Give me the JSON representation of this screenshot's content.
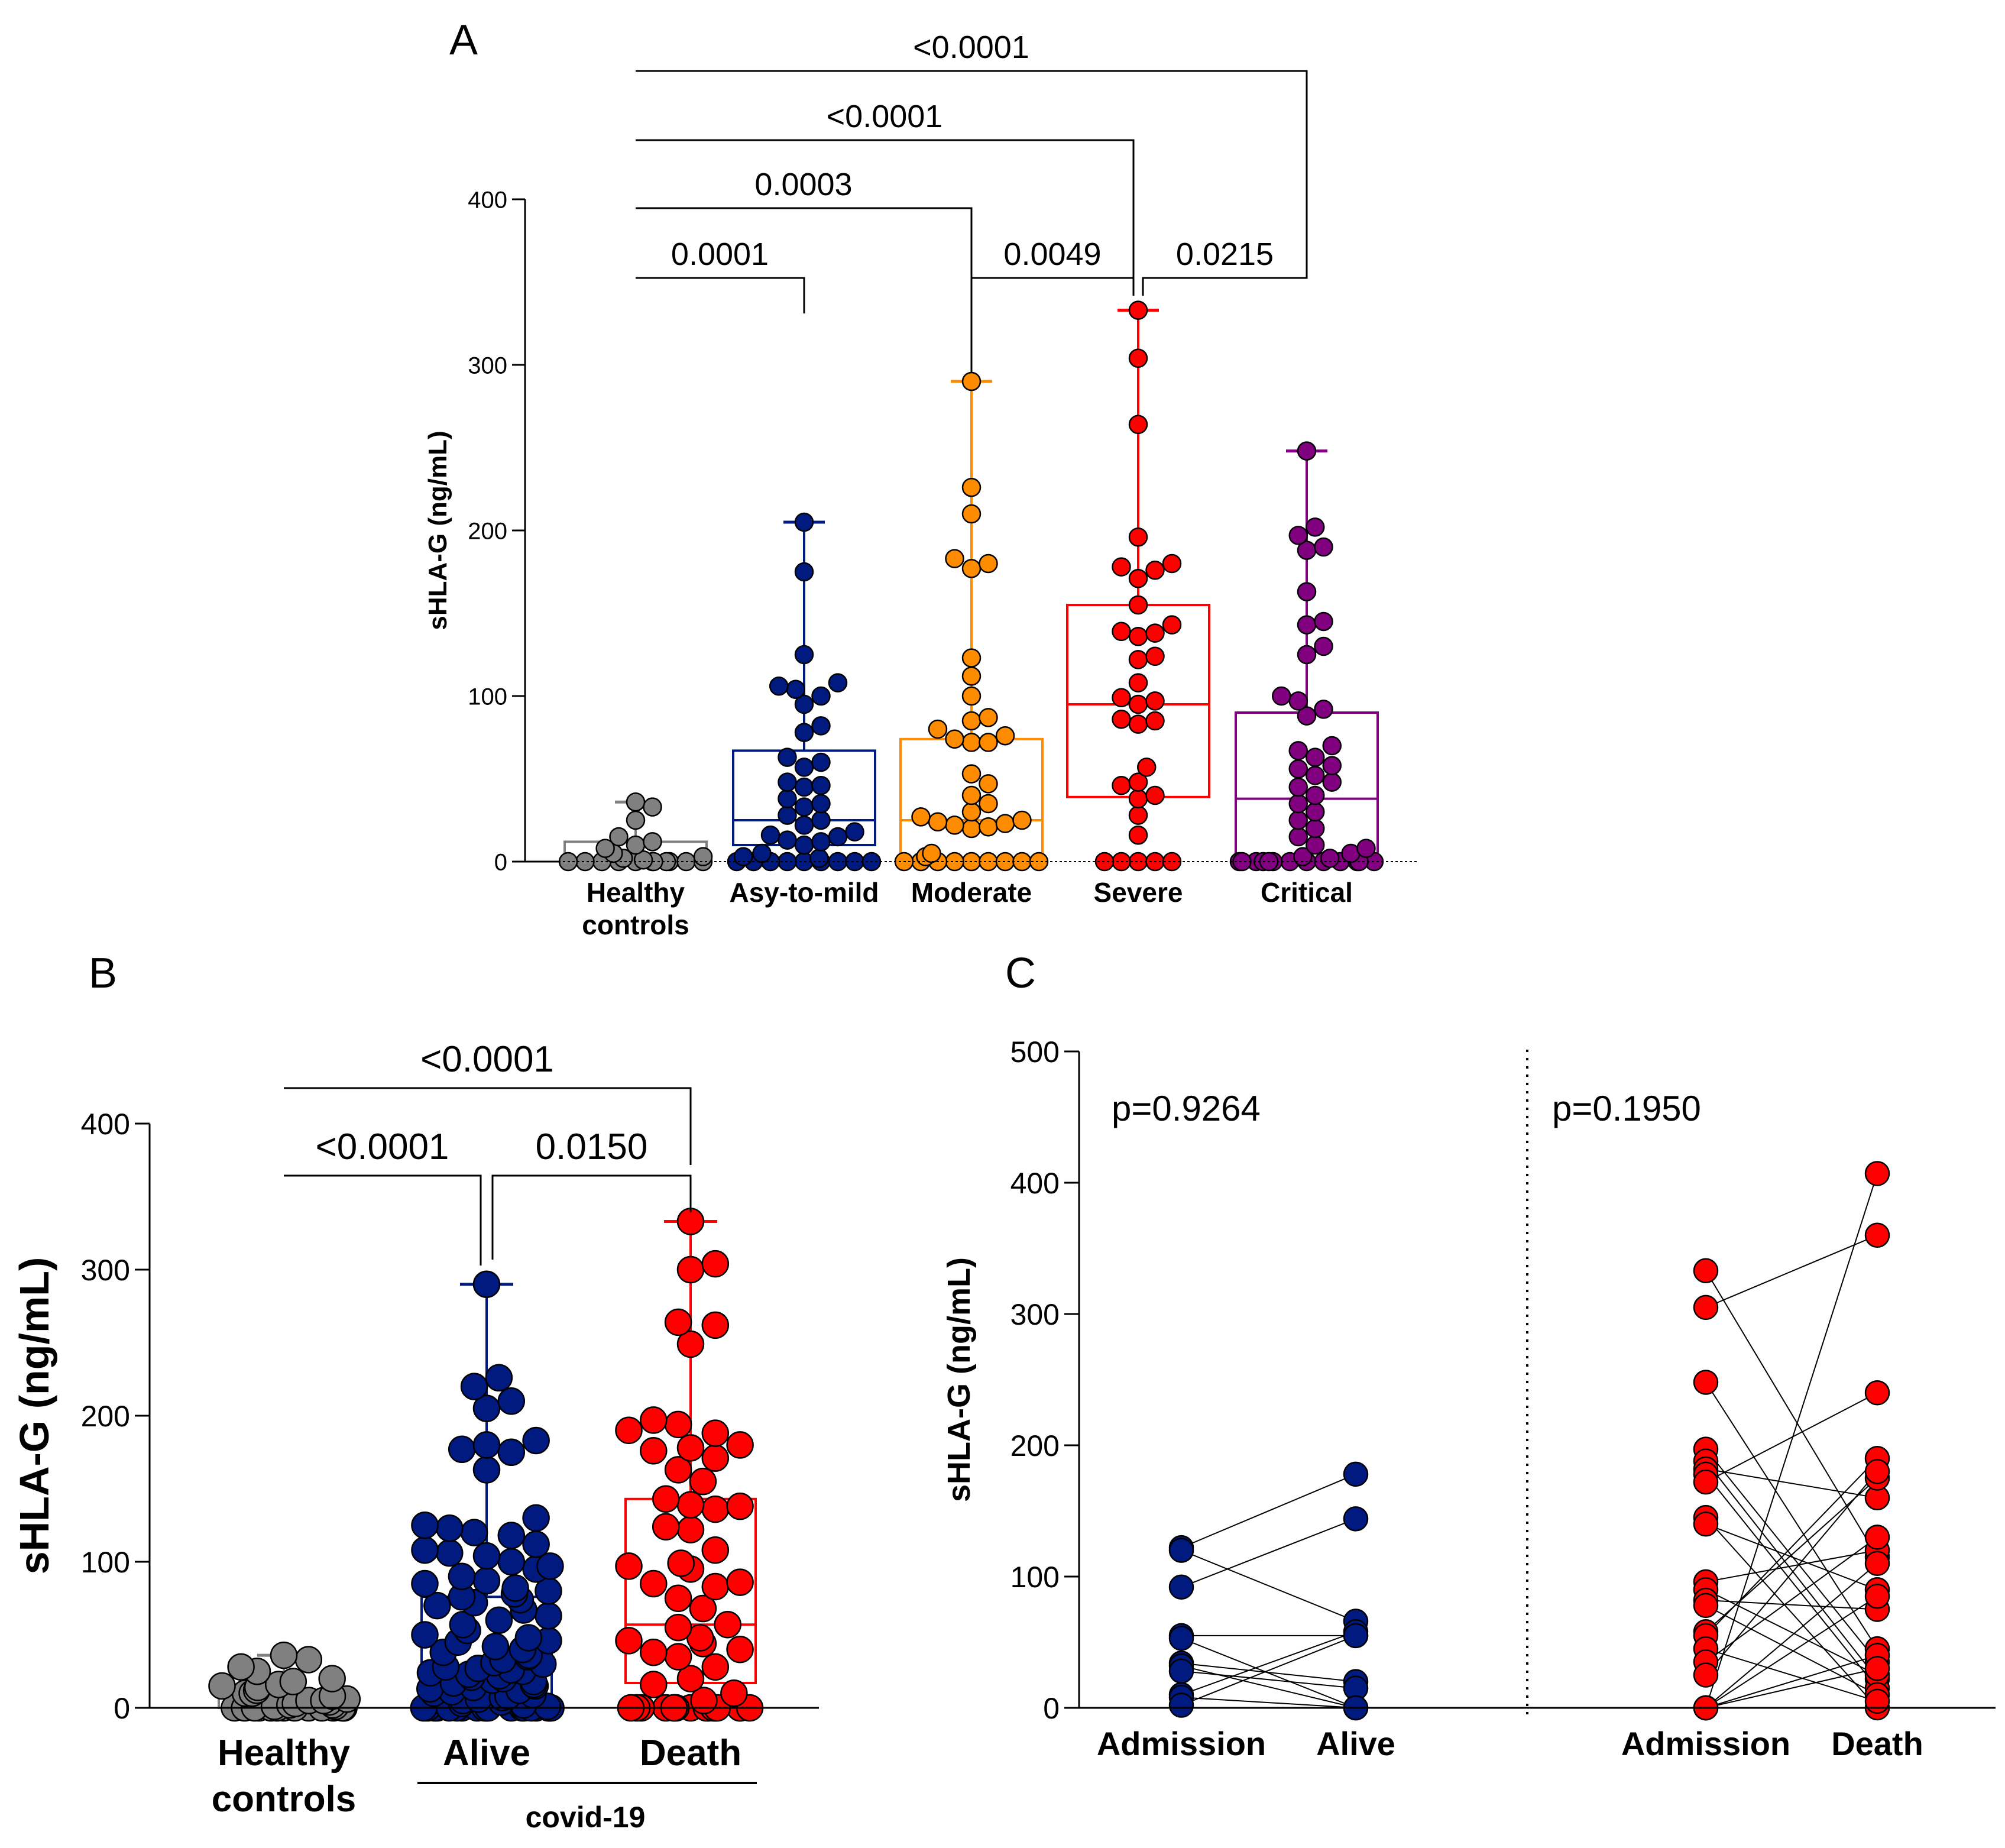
{
  "chart_data": [
    {
      "panel": "A",
      "type": "box",
      "ylabel": "sHLA-G (ng/mL)",
      "ylim": [
        0,
        400
      ],
      "yticks": [
        0,
        100,
        200,
        300,
        400
      ],
      "categories": [
        "Healthy controls",
        "Asy-to-mild",
        "Moderate",
        "Severe",
        "Critical"
      ],
      "series": [
        {
          "name": "Healthy controls",
          "color": "#808080",
          "box": {
            "q1": 0,
            "median": 0,
            "q3": 12,
            "min": 0,
            "max": 36
          },
          "points": [
            36,
            33,
            25,
            15,
            12,
            10,
            8,
            5,
            3,
            2,
            1,
            0,
            0,
            0,
            0,
            0,
            0,
            0,
            0,
            0,
            0,
            0
          ]
        },
        {
          "name": "Asy-to-mild",
          "color": "#001a80",
          "box": {
            "q1": 10,
            "median": 25,
            "q3": 67,
            "min": 0,
            "max": 205
          },
          "points": [
            205,
            175,
            125,
            108,
            106,
            104,
            100,
            95,
            82,
            78,
            63,
            60,
            57,
            48,
            46,
            45,
            38,
            35,
            33,
            28,
            25,
            22,
            18,
            16,
            15,
            13,
            12,
            10,
            5,
            3,
            2,
            0,
            0,
            0,
            0,
            0,
            0,
            0,
            0,
            0
          ]
        },
        {
          "name": "Moderate",
          "color": "#ff8c00",
          "box": {
            "q1": 0,
            "median": 25,
            "q3": 74,
            "min": 0,
            "max": 290
          },
          "points": [
            290,
            226,
            210,
            183,
            180,
            177,
            123,
            112,
            100,
            87,
            85,
            80,
            76,
            74,
            72,
            72,
            53,
            47,
            40,
            35,
            30,
            27,
            25,
            24,
            23,
            22,
            21,
            20,
            5,
            3,
            0,
            0,
            0,
            0,
            0,
            0,
            0,
            0,
            0
          ]
        },
        {
          "name": "Severe",
          "color": "#ff0000",
          "box": {
            "q1": 39,
            "median": 95,
            "q3": 155,
            "min": 0,
            "max": 333
          },
          "points": [
            333,
            304,
            264,
            196,
            180,
            178,
            176,
            171,
            155,
            143,
            139,
            138,
            136,
            124,
            122,
            108,
            99,
            97,
            95,
            86,
            85,
            83,
            57,
            48,
            46,
            40,
            38,
            28,
            16,
            0,
            0,
            0,
            0,
            0
          ]
        },
        {
          "name": "Critical",
          "color": "#800080",
          "box": {
            "q1": 0,
            "median": 38,
            "q3": 90,
            "min": 0,
            "max": 248
          },
          "points": [
            248,
            202,
            197,
            190,
            188,
            163,
            145,
            143,
            130,
            125,
            100,
            97,
            92,
            88,
            70,
            67,
            63,
            58,
            56,
            52,
            48,
            45,
            40,
            35,
            30,
            25,
            20,
            15,
            10,
            8,
            5,
            3,
            2,
            0,
            0,
            0,
            0,
            0,
            0,
            0,
            0,
            0,
            0,
            0,
            0,
            0
          ]
        }
      ],
      "comparisons": [
        {
          "from": "Healthy controls",
          "to": "Asy-to-mild",
          "p": "0.0001"
        },
        {
          "from": "Healthy controls",
          "to": "Moderate",
          "p": "0.0003"
        },
        {
          "from": "Healthy controls",
          "to": "Severe",
          "p": "<0.0001"
        },
        {
          "from": "Healthy controls",
          "to": "Critical",
          "p": "<0.0001"
        },
        {
          "from": "Moderate",
          "to": "Severe",
          "p": "0.0049"
        },
        {
          "from": "Severe",
          "to": "Critical",
          "p": "0.0215"
        }
      ]
    },
    {
      "panel": "B",
      "type": "box",
      "ylabel": "sHLA-G (ng/mL)",
      "ylim": [
        0,
        400
      ],
      "yticks": [
        0,
        100,
        200,
        300,
        400
      ],
      "categories": [
        "Healthy controls",
        "Alive",
        "Death"
      ],
      "group_label": "covid-19",
      "series": [
        {
          "name": "Healthy controls",
          "color": "#808080",
          "box": {
            "q1": 0,
            "median": 0,
            "q3": 12,
            "min": 0,
            "max": 36
          },
          "points": [
            36,
            33,
            28,
            25,
            20,
            18,
            16,
            15,
            14,
            12,
            10,
            10,
            8,
            6,
            5,
            5,
            4,
            3,
            2,
            2,
            1,
            1,
            0,
            0,
            0,
            0,
            0,
            0,
            0,
            0,
            0,
            0,
            0,
            0,
            0,
            0
          ]
        },
        {
          "name": "Alive",
          "color": "#001a80",
          "box": {
            "q1": 0,
            "median": 25,
            "q3": 76,
            "min": 0,
            "max": 290
          },
          "points": [
            290,
            226,
            220,
            210,
            205,
            183,
            180,
            177,
            175,
            163,
            130,
            125,
            123,
            120,
            118,
            112,
            108,
            106,
            104,
            100,
            97,
            95,
            90,
            87,
            85,
            82,
            80,
            78,
            76,
            74,
            72,
            70,
            67,
            63,
            60,
            57,
            53,
            50,
            48,
            46,
            45,
            42,
            40,
            38,
            36,
            35,
            33,
            31,
            30,
            28,
            27,
            26,
            25,
            24,
            23,
            22,
            21,
            20,
            19,
            18,
            17,
            16,
            15,
            14,
            13,
            12,
            11,
            10,
            9,
            8,
            7,
            6,
            5,
            4,
            3,
            2,
            1,
            0,
            0,
            0,
            0,
            0,
            0,
            0,
            0,
            0,
            0,
            0,
            0,
            0,
            0,
            0,
            0,
            0,
            0,
            0
          ]
        },
        {
          "name": "Death",
          "color": "#ff0000",
          "box": {
            "q1": 17,
            "median": 57,
            "q3": 143,
            "min": 0,
            "max": 333
          },
          "points": [
            333,
            304,
            300,
            264,
            262,
            249,
            197,
            194,
            190,
            188,
            180,
            178,
            176,
            171,
            163,
            155,
            143,
            139,
            138,
            136,
            124,
            122,
            108,
            99,
            97,
            95,
            86,
            85,
            83,
            75,
            68,
            57,
            55,
            48,
            46,
            44,
            40,
            38,
            35,
            28,
            20,
            16,
            10,
            5,
            0,
            0,
            0,
            0,
            0,
            0,
            0,
            0,
            0,
            0,
            0,
            0,
            0,
            0,
            0,
            0
          ]
        }
      ],
      "comparisons": [
        {
          "from": "Healthy controls",
          "to": "Alive",
          "p": "<0.0001"
        },
        {
          "from": "Alive",
          "to": "Death",
          "p": "0.0150"
        },
        {
          "from": "Healthy controls",
          "to": "Death",
          "p": "<0.0001"
        }
      ]
    },
    {
      "panel": "C",
      "type": "paired-scatter",
      "ylabel": "sHLA-G (ng/mL)",
      "ylim": [
        0,
        500
      ],
      "yticks": [
        0,
        100,
        200,
        300,
        400,
        500
      ],
      "groups": [
        {
          "label": "p=0.9264",
          "color": "#001a80",
          "categories": [
            "Admission",
            "Alive"
          ],
          "pairs": [
            [
              122,
              178
            ],
            [
              120,
              66
            ],
            [
              92,
              144
            ],
            [
              55,
              55
            ],
            [
              53,
              0
            ],
            [
              34,
              20
            ],
            [
              32,
              0
            ],
            [
              28,
              15
            ],
            [
              10,
              58
            ],
            [
              8,
              0
            ],
            [
              2,
              55
            ]
          ]
        },
        {
          "label": "p=0.1950",
          "color": "#ff0000",
          "categories": [
            "Admission",
            "Death"
          ],
          "pairs": [
            [
              333,
              115
            ],
            [
              305,
              360
            ],
            [
              248,
              45
            ],
            [
              197,
              35
            ],
            [
              188,
              22
            ],
            [
              182,
              160
            ],
            [
              178,
              15
            ],
            [
              172,
              240
            ],
            [
              145,
              0
            ],
            [
              140,
              90
            ],
            [
              96,
              120
            ],
            [
              90,
              25
            ],
            [
              82,
              75
            ],
            [
              78,
              10
            ],
            [
              58,
              175
            ],
            [
              55,
              190
            ],
            [
              45,
              5
            ],
            [
              35,
              130
            ],
            [
              25,
              180
            ],
            [
              0,
              407
            ],
            [
              0,
              110
            ],
            [
              0,
              85
            ],
            [
              0,
              40
            ],
            [
              0,
              30
            ]
          ]
        }
      ]
    }
  ],
  "panel_labels": {
    "a": "A",
    "b": "B",
    "c": "C"
  },
  "group_labels": {
    "covid": "covid-19"
  }
}
